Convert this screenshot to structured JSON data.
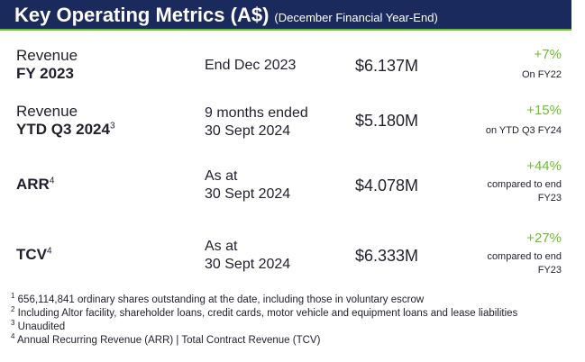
{
  "header": {
    "title": "Key Operating Metrics (A$)",
    "subtitle": "(December Financial Year-End)"
  },
  "rows": [
    {
      "label_line1": "Revenue",
      "label_line2": "FY 2023",
      "label_sup": "",
      "period_line1": "End Dec 2023",
      "period_line2": "",
      "value": "$6.137M",
      "change_pct": "+7%",
      "change_note_line1": "On FY22",
      "change_note_line2": ""
    },
    {
      "label_line1": "Revenue",
      "label_line2": "YTD Q3 2024",
      "label_sup": "3",
      "period_line1": "9 months ended",
      "period_line2": "30 Sept 2024",
      "value": "$5.180M",
      "change_pct": "+15%",
      "change_note_line1": "on YTD Q3 FY24",
      "change_note_line2": ""
    },
    {
      "label_line1": "",
      "label_line2": "ARR",
      "label_sup": "4",
      "period_line1": "As at",
      "period_line2": "30 Sept 2024",
      "value": "$4.078M",
      "change_pct": "+44%",
      "change_note_line1": "compared to end",
      "change_note_line2": "FY23"
    },
    {
      "label_line1": "",
      "label_line2": "TCV",
      "label_sup": "4",
      "period_line1": "As at",
      "period_line2": "30 Sept 2024",
      "value": "$6.333M",
      "change_pct": "+27%",
      "change_note_line1": "compared to end",
      "change_note_line2": "FY23"
    }
  ],
  "footnotes": [
    {
      "num": "1",
      "text": "656,114,841 ordinary shares outstanding at the date, including those in voluntary escrow"
    },
    {
      "num": "2",
      "text": "Including Altor facility, shareholder loans, credit cards, motor vehicle and equipment loans and lease liabilities"
    },
    {
      "num": "3",
      "text": "Unaudited"
    },
    {
      "num": "4",
      "text": "Annual Recurring Revenue (ARR) | Total Contract Revenue (TCV)"
    }
  ],
  "colors": {
    "header_bg": "#1b2a5c",
    "accent_green": "#6cbf2b",
    "text": "#1f1f2e"
  }
}
